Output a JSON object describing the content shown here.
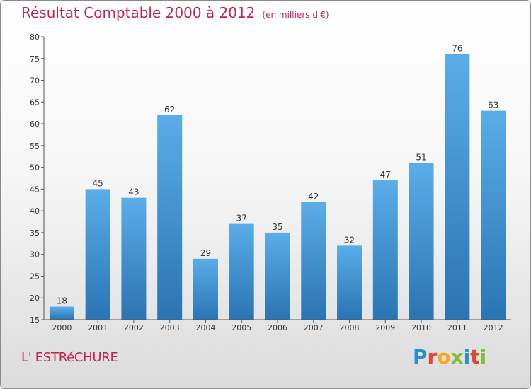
{
  "title": "Résultat Comptable 2000 à 2012",
  "subtitle": "(en milliers d'€)",
  "commune": "L' ESTRéCHURE",
  "logo": {
    "letters": [
      "P",
      "r",
      "o",
      "x",
      "i",
      "t",
      "i"
    ],
    "colors": [
      "#2a8ed0",
      "#e8432e",
      "#f6a81c",
      "#7cbf3a",
      "#2a8ed0",
      "#e8432e",
      "#7cbf3a"
    ]
  },
  "colors": {
    "title": "#c0254f",
    "bar_top": "#5aade8",
    "bar_bottom": "#2a74b3",
    "axis": "#555555"
  },
  "chart_data": {
    "type": "bar",
    "title": "Résultat Comptable 2000 à 2012",
    "xlabel": "",
    "ylabel": "(en milliers d'€)",
    "categories": [
      "2000",
      "2001",
      "2002",
      "2003",
      "2004",
      "2005",
      "2006",
      "2007",
      "2008",
      "2009",
      "2010",
      "2011",
      "2012"
    ],
    "values": [
      18,
      45,
      43,
      62,
      29,
      37,
      35,
      42,
      32,
      47,
      51,
      76,
      63
    ],
    "ylim": [
      15,
      80
    ],
    "yticks": [
      15,
      20,
      25,
      30,
      35,
      40,
      45,
      50,
      55,
      60,
      65,
      70,
      75,
      80
    ],
    "grid": false,
    "data_labels": true
  }
}
